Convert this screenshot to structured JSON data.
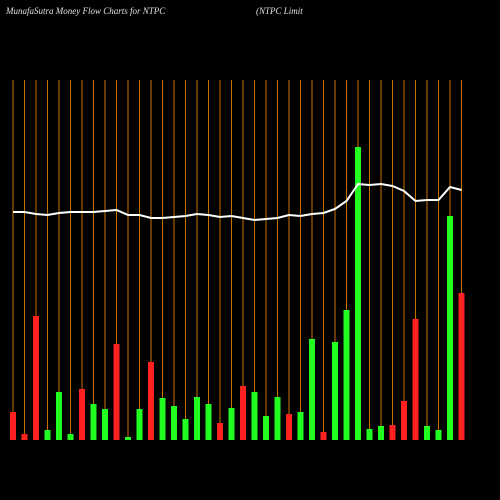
{
  "chart_data": {
    "type": "bar",
    "title": "MunafaSutra  Money Flow  Charts for NTPC",
    "subtitle": "(NTPC Limit",
    "categories": [
      null,
      null,
      null,
      null,
      null,
      null,
      null,
      null,
      null,
      null,
      null,
      null,
      null,
      null,
      null,
      null,
      null,
      null,
      null,
      null,
      null,
      null,
      null,
      null,
      null,
      null,
      null,
      null,
      null,
      null,
      null,
      null,
      null,
      null,
      null,
      null,
      null,
      null,
      null,
      null
    ],
    "values": [
      28,
      6,
      124,
      10,
      48,
      6,
      51,
      36,
      31,
      96,
      3,
      31,
      78,
      42,
      34,
      21,
      43,
      36,
      17,
      32,
      54,
      48,
      24,
      43,
      26,
      28,
      101,
      8,
      98,
      130,
      293,
      11,
      14,
      15,
      39,
      121,
      14,
      10,
      224,
      147
    ],
    "colors": [
      "#ff2020",
      "#ff2020",
      "#ff2020",
      "#20ff20",
      "#20ff20",
      "#20ff20",
      "#ff2020",
      "#20ff20",
      "#20ff20",
      "#ff2020",
      "#20ff20",
      "#20ff20",
      "#ff2020",
      "#20ff20",
      "#20ff20",
      "#20ff20",
      "#20ff20",
      "#20ff20",
      "#ff2020",
      "#20ff20",
      "#ff2020",
      "#20ff20",
      "#20ff20",
      "#20ff20",
      "#ff2020",
      "#20ff20",
      "#20ff20",
      "#ff2020",
      "#20ff20",
      "#20ff20",
      "#20ff20",
      "#20ff20",
      "#20ff20",
      "#ff2020",
      "#ff2020",
      "#ff2020",
      "#20ff20",
      "#20ff20",
      "#20ff20",
      "#ff2020"
    ],
    "line": {
      "color": "#ffffff",
      "values": [
        228,
        228,
        226,
        225,
        227,
        228,
        228,
        228,
        229,
        230,
        225,
        225,
        222,
        222,
        223,
        224,
        226,
        225,
        223,
        224,
        222,
        220,
        221,
        222,
        225,
        224,
        226,
        227,
        231,
        239,
        256,
        255,
        256,
        254,
        249,
        239,
        240,
        240,
        253,
        250
      ]
    },
    "ylim": [
      0,
      300
    ],
    "divider_color": "#c87000"
  }
}
